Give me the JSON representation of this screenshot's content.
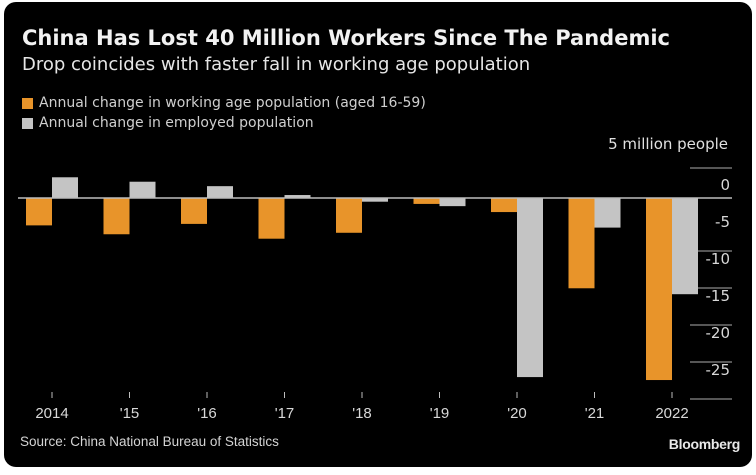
{
  "chart_data": {
    "type": "bar",
    "title": "China Has Lost 40 Million Workers Since The Pandemic",
    "subtitle": "Drop coincides with faster fall in working age population",
    "ylabel": "5 million people",
    "xlabel": "",
    "categories": [
      "2014",
      "'15",
      "'16",
      "'17",
      "'18",
      "'19",
      "'20",
      "'21",
      "2022"
    ],
    "series": [
      {
        "name": "Annual change in working age population (aged 16-59)",
        "color": "#e8942a",
        "values": [
          -3.7,
          -4.9,
          -3.5,
          -5.5,
          -4.7,
          -0.8,
          -1.9,
          -12.2,
          -24.6
        ]
      },
      {
        "name": "Annual change in employed population",
        "color": "#c4c4c4",
        "values": [
          2.8,
          2.2,
          1.6,
          0.4,
          -0.5,
          -1.1,
          -24.2,
          -4.0,
          -13.0
        ]
      }
    ],
    "yticks": [
      0,
      -5,
      -10,
      -15,
      -20,
      -25
    ],
    "ytick_labels": [
      "0",
      "-5",
      "-10",
      "-15",
      "-20",
      "-25"
    ],
    "ylim": [
      -26,
      4
    ],
    "grid": true,
    "legend": "top-left",
    "yaxis_position": "right"
  },
  "footer": {
    "source": "Source: China National Bureau of Statistics",
    "brand": "Bloomberg"
  },
  "colors": {
    "background": "#000000",
    "text": "#e6e6e6",
    "zero_line": "#bdbdbd"
  }
}
